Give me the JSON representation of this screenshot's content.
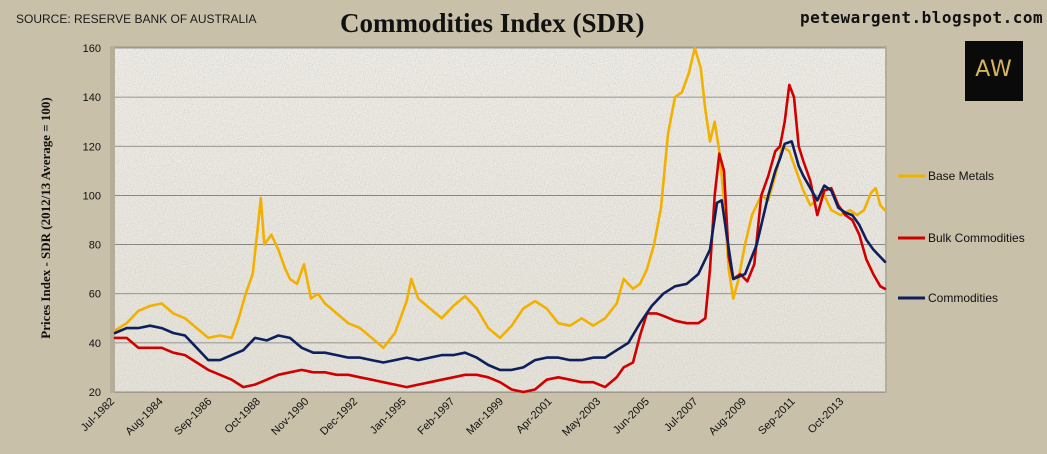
{
  "source": "SOURCE: RESERVE BANK OF AUSTRALIA",
  "blog": "petewargent.blogspot.com",
  "logo_text": "AW",
  "chart_data": {
    "type": "line",
    "title": "Commodities Index (SDR)",
    "xlabel": "",
    "ylabel": "Prices Index - SDR  (2012/13 Average = 100)",
    "ylim": [
      20,
      160
    ],
    "yticks": [
      20,
      40,
      60,
      80,
      100,
      120,
      140,
      160
    ],
    "xlim": [
      1982.5,
      2015.5
    ],
    "xticks": [
      {
        "label": "Jul-1982",
        "t": 1982.5
      },
      {
        "label": "Aug-1984",
        "t": 1984.58
      },
      {
        "label": "Sep-1986",
        "t": 1986.67
      },
      {
        "label": "Oct-1988",
        "t": 1988.75
      },
      {
        "label": "Nov-1990",
        "t": 1990.83
      },
      {
        "label": "Dec-1992",
        "t": 1992.92
      },
      {
        "label": "Jan-1995",
        "t": 1995.0
      },
      {
        "label": "Feb-1997",
        "t": 1997.08
      },
      {
        "label": "Mar-1999",
        "t": 1999.17
      },
      {
        "label": "Apr-2001",
        "t": 2001.25
      },
      {
        "label": "May-2003",
        "t": 2003.33
      },
      {
        "label": "Jun-2005",
        "t": 2005.42
      },
      {
        "label": "Jul-2007",
        "t": 2007.5
      },
      {
        "label": "Aug-2009",
        "t": 2009.58
      },
      {
        "label": "Sep-2011",
        "t": 2011.67
      },
      {
        "label": "Oct-2013",
        "t": 2013.75
      }
    ],
    "grid": true,
    "legend_position": "right",
    "series": [
      {
        "name": "Base Metals",
        "color": "#f2b000",
        "points": [
          [
            1982.5,
            45
          ],
          [
            1983.0,
            48
          ],
          [
            1983.5,
            53
          ],
          [
            1984.0,
            55
          ],
          [
            1984.5,
            56
          ],
          [
            1985.0,
            52
          ],
          [
            1985.5,
            50
          ],
          [
            1986.0,
            46
          ],
          [
            1986.5,
            42
          ],
          [
            1987.0,
            43
          ],
          [
            1987.5,
            42
          ],
          [
            1987.8,
            50
          ],
          [
            1988.1,
            60
          ],
          [
            1988.4,
            68
          ],
          [
            1988.6,
            85
          ],
          [
            1988.75,
            99
          ],
          [
            1988.9,
            80
          ],
          [
            1989.2,
            84
          ],
          [
            1989.5,
            78
          ],
          [
            1989.8,
            70
          ],
          [
            1990.0,
            66
          ],
          [
            1990.3,
            64
          ],
          [
            1990.6,
            72
          ],
          [
            1990.9,
            58
          ],
          [
            1991.2,
            60
          ],
          [
            1991.5,
            56
          ],
          [
            1992.0,
            52
          ],
          [
            1992.5,
            48
          ],
          [
            1993.0,
            46
          ],
          [
            1993.5,
            42
          ],
          [
            1994.0,
            38
          ],
          [
            1994.5,
            44
          ],
          [
            1995.0,
            57
          ],
          [
            1995.2,
            66
          ],
          [
            1995.5,
            58
          ],
          [
            1996.0,
            54
          ],
          [
            1996.5,
            50
          ],
          [
            1997.0,
            55
          ],
          [
            1997.5,
            59
          ],
          [
            1998.0,
            54
          ],
          [
            1998.5,
            46
          ],
          [
            1999.0,
            42
          ],
          [
            1999.5,
            47
          ],
          [
            2000.0,
            54
          ],
          [
            2000.5,
            57
          ],
          [
            2001.0,
            54
          ],
          [
            2001.5,
            48
          ],
          [
            2002.0,
            47
          ],
          [
            2002.5,
            50
          ],
          [
            2003.0,
            47
          ],
          [
            2003.5,
            50
          ],
          [
            2004.0,
            56
          ],
          [
            2004.3,
            66
          ],
          [
            2004.7,
            62
          ],
          [
            2005.0,
            64
          ],
          [
            2005.3,
            70
          ],
          [
            2005.6,
            80
          ],
          [
            2005.9,
            95
          ],
          [
            2006.2,
            125
          ],
          [
            2006.5,
            140
          ],
          [
            2006.8,
            142
          ],
          [
            2007.1,
            150
          ],
          [
            2007.35,
            160
          ],
          [
            2007.6,
            152
          ],
          [
            2007.8,
            135
          ],
          [
            2008.0,
            122
          ],
          [
            2008.2,
            130
          ],
          [
            2008.4,
            118
          ],
          [
            2008.6,
            98
          ],
          [
            2008.8,
            70
          ],
          [
            2009.0,
            58
          ],
          [
            2009.2,
            65
          ],
          [
            2009.5,
            80
          ],
          [
            2009.8,
            92
          ],
          [
            2010.2,
            100
          ],
          [
            2010.5,
            98
          ],
          [
            2010.8,
            108
          ],
          [
            2011.1,
            120
          ],
          [
            2011.4,
            118
          ],
          [
            2011.7,
            110
          ],
          [
            2012.0,
            102
          ],
          [
            2012.3,
            96
          ],
          [
            2012.6,
            98
          ],
          [
            2012.9,
            100
          ],
          [
            2013.2,
            94
          ],
          [
            2013.6,
            92
          ],
          [
            2014.0,
            94
          ],
          [
            2014.3,
            92
          ],
          [
            2014.6,
            94
          ],
          [
            2014.9,
            101
          ],
          [
            2015.1,
            103
          ],
          [
            2015.3,
            96
          ],
          [
            2015.5,
            94
          ]
        ]
      },
      {
        "name": "Bulk Commodities",
        "color": "#d00000",
        "points": [
          [
            1982.5,
            42
          ],
          [
            1983.0,
            42
          ],
          [
            1983.5,
            38
          ],
          [
            1984.0,
            38
          ],
          [
            1984.5,
            38
          ],
          [
            1985.0,
            36
          ],
          [
            1985.5,
            35
          ],
          [
            1986.0,
            32
          ],
          [
            1986.5,
            29
          ],
          [
            1987.0,
            27
          ],
          [
            1987.5,
            25
          ],
          [
            1988.0,
            22
          ],
          [
            1988.5,
            23
          ],
          [
            1989.0,
            25
          ],
          [
            1989.5,
            27
          ],
          [
            1990.0,
            28
          ],
          [
            1990.5,
            29
          ],
          [
            1991.0,
            28
          ],
          [
            1991.5,
            28
          ],
          [
            1992.0,
            27
          ],
          [
            1992.5,
            27
          ],
          [
            1993.0,
            26
          ],
          [
            1993.5,
            25
          ],
          [
            1994.0,
            24
          ],
          [
            1994.5,
            23
          ],
          [
            1995.0,
            22
          ],
          [
            1995.5,
            23
          ],
          [
            1996.0,
            24
          ],
          [
            1996.5,
            25
          ],
          [
            1997.0,
            26
          ],
          [
            1997.5,
            27
          ],
          [
            1998.0,
            27
          ],
          [
            1998.5,
            26
          ],
          [
            1999.0,
            24
          ],
          [
            1999.5,
            21
          ],
          [
            2000.0,
            20
          ],
          [
            2000.5,
            21
          ],
          [
            2001.0,
            25
          ],
          [
            2001.5,
            26
          ],
          [
            2002.0,
            25
          ],
          [
            2002.5,
            24
          ],
          [
            2003.0,
            24
          ],
          [
            2003.5,
            22
          ],
          [
            2004.0,
            26
          ],
          [
            2004.3,
            30
          ],
          [
            2004.7,
            32
          ],
          [
            2005.0,
            43
          ],
          [
            2005.3,
            52
          ],
          [
            2005.7,
            52
          ],
          [
            2006.0,
            51
          ],
          [
            2006.5,
            49
          ],
          [
            2007.0,
            48
          ],
          [
            2007.5,
            48
          ],
          [
            2007.8,
            50
          ],
          [
            2008.0,
            70
          ],
          [
            2008.2,
            100
          ],
          [
            2008.4,
            117
          ],
          [
            2008.6,
            110
          ],
          [
            2008.8,
            75
          ],
          [
            2009.0,
            66
          ],
          [
            2009.3,
            68
          ],
          [
            2009.6,
            65
          ],
          [
            2009.9,
            72
          ],
          [
            2010.2,
            100
          ],
          [
            2010.5,
            108
          ],
          [
            2010.8,
            118
          ],
          [
            2011.0,
            120
          ],
          [
            2011.2,
            130
          ],
          [
            2011.4,
            145
          ],
          [
            2011.6,
            140
          ],
          [
            2011.8,
            120
          ],
          [
            2012.0,
            114
          ],
          [
            2012.3,
            106
          ],
          [
            2012.6,
            92
          ],
          [
            2012.9,
            102
          ],
          [
            2013.2,
            103
          ],
          [
            2013.5,
            96
          ],
          [
            2013.8,
            92
          ],
          [
            2014.1,
            90
          ],
          [
            2014.4,
            84
          ],
          [
            2014.7,
            74
          ],
          [
            2015.0,
            68
          ],
          [
            2015.3,
            63
          ],
          [
            2015.5,
            62
          ]
        ]
      },
      {
        "name": "Commodities",
        "color": "#0d1f5c",
        "points": [
          [
            1982.5,
            44
          ],
          [
            1983.0,
            46
          ],
          [
            1983.5,
            46
          ],
          [
            1984.0,
            47
          ],
          [
            1984.5,
            46
          ],
          [
            1985.0,
            44
          ],
          [
            1985.5,
            43
          ],
          [
            1986.0,
            38
          ],
          [
            1986.5,
            33
          ],
          [
            1987.0,
            33
          ],
          [
            1987.5,
            35
          ],
          [
            1988.0,
            37
          ],
          [
            1988.5,
            42
          ],
          [
            1989.0,
            41
          ],
          [
            1989.5,
            43
          ],
          [
            1990.0,
            42
          ],
          [
            1990.5,
            38
          ],
          [
            1991.0,
            36
          ],
          [
            1991.5,
            36
          ],
          [
            1992.0,
            35
          ],
          [
            1992.5,
            34
          ],
          [
            1993.0,
            34
          ],
          [
            1993.5,
            33
          ],
          [
            1994.0,
            32
          ],
          [
            1994.5,
            33
          ],
          [
            1995.0,
            34
          ],
          [
            1995.5,
            33
          ],
          [
            1996.0,
            34
          ],
          [
            1996.5,
            35
          ],
          [
            1997.0,
            35
          ],
          [
            1997.5,
            36
          ],
          [
            1998.0,
            34
          ],
          [
            1998.5,
            31
          ],
          [
            1999.0,
            29
          ],
          [
            1999.5,
            29
          ],
          [
            2000.0,
            30
          ],
          [
            2000.5,
            33
          ],
          [
            2001.0,
            34
          ],
          [
            2001.5,
            34
          ],
          [
            2002.0,
            33
          ],
          [
            2002.5,
            33
          ],
          [
            2003.0,
            34
          ],
          [
            2003.5,
            34
          ],
          [
            2004.0,
            37
          ],
          [
            2004.5,
            40
          ],
          [
            2005.0,
            48
          ],
          [
            2005.5,
            55
          ],
          [
            2006.0,
            60
          ],
          [
            2006.5,
            63
          ],
          [
            2007.0,
            64
          ],
          [
            2007.5,
            68
          ],
          [
            2008.0,
            78
          ],
          [
            2008.3,
            97
          ],
          [
            2008.5,
            98
          ],
          [
            2008.7,
            85
          ],
          [
            2009.0,
            66
          ],
          [
            2009.5,
            68
          ],
          [
            2010.0,
            80
          ],
          [
            2010.5,
            100
          ],
          [
            2010.8,
            110
          ],
          [
            2011.0,
            115
          ],
          [
            2011.2,
            121
          ],
          [
            2011.5,
            122
          ],
          [
            2011.8,
            112
          ],
          [
            2012.0,
            108
          ],
          [
            2012.3,
            103
          ],
          [
            2012.6,
            98
          ],
          [
            2012.9,
            104
          ],
          [
            2013.2,
            102
          ],
          [
            2013.5,
            95
          ],
          [
            2013.8,
            93
          ],
          [
            2014.1,
            92
          ],
          [
            2014.4,
            88
          ],
          [
            2014.7,
            82
          ],
          [
            2015.0,
            78
          ],
          [
            2015.3,
            75
          ],
          [
            2015.5,
            73
          ]
        ]
      }
    ]
  }
}
